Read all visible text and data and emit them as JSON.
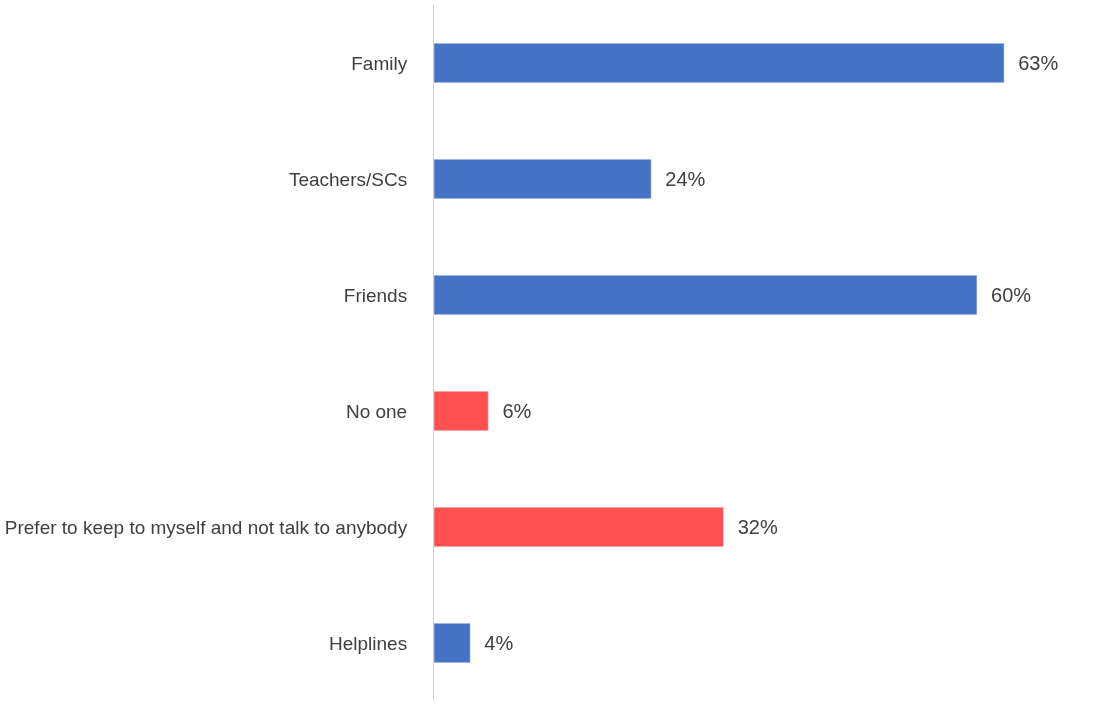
{
  "chart_data": {
    "type": "bar",
    "orientation": "horizontal",
    "categories": [
      "Family",
      "Teachers/SCs",
      "Friends",
      "No one",
      "Prefer to keep to myself and not talk to anybody",
      "Helplines"
    ],
    "values": [
      63,
      24,
      60,
      6,
      32,
      4
    ],
    "colors": [
      "#4472c4",
      "#4472c4",
      "#4472c4",
      "#ff4f4f",
      "#ff4f4f",
      "#4472c4"
    ],
    "value_labels": [
      "63%",
      "24%",
      "60%",
      "6%",
      "32%",
      "4%"
    ],
    "legend": false
  }
}
